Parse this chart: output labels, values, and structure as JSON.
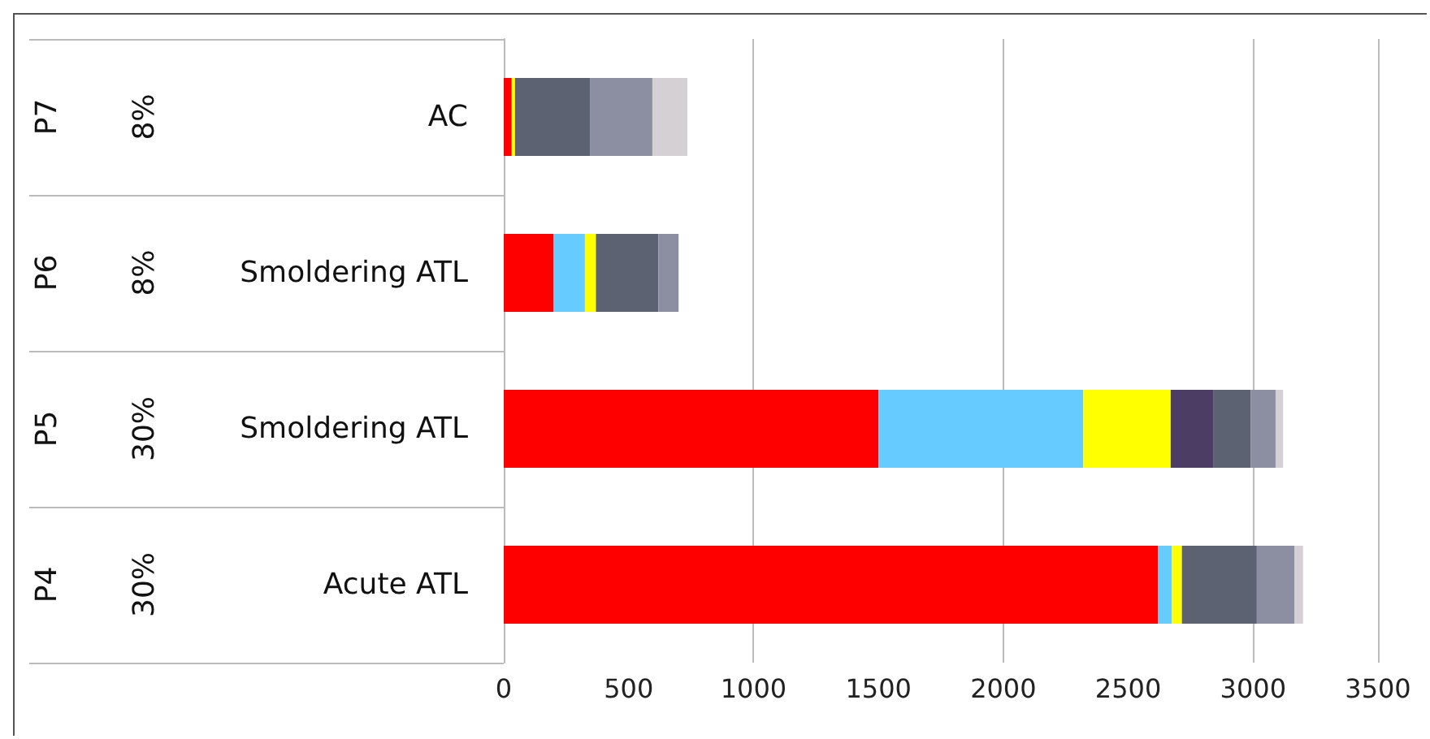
{
  "chart_data": {
    "type": "bar",
    "orientation": "horizontal",
    "stacked": true,
    "categories": [
      "AC",
      "Smoldering ATL",
      "Smoldering ATL",
      "Acute ATL"
    ],
    "annotations": [
      "P7",
      "8%",
      "P6",
      "8%",
      "P5",
      "30%",
      "P4",
      "30%"
    ],
    "series": [
      {
        "color": "#ff0000",
        "values": [
          32,
          200,
          1500,
          2620
        ]
      },
      {
        "color": "#66ccff",
        "values": [
          null,
          125,
          820,
          55
        ]
      },
      {
        "color": "#ffff00",
        "values": [
          13,
          44,
          350,
          40
        ]
      },
      {
        "color": "#4b3d63",
        "values": [
          null,
          null,
          170,
          null
        ]
      },
      {
        "color": "#5c6272",
        "values": [
          300,
          250,
          150,
          300
        ]
      },
      {
        "color": "#8c8fa2",
        "values": [
          250,
          81,
          100,
          150
        ]
      },
      {
        "color": "#d4d0d4",
        "values": [
          140,
          null,
          30,
          35
        ]
      }
    ],
    "xlim": [
      0,
      3500
    ],
    "xticks": [
      0,
      500,
      1000,
      1500,
      2000,
      2500,
      3000,
      3500
    ],
    "grid": "x"
  }
}
